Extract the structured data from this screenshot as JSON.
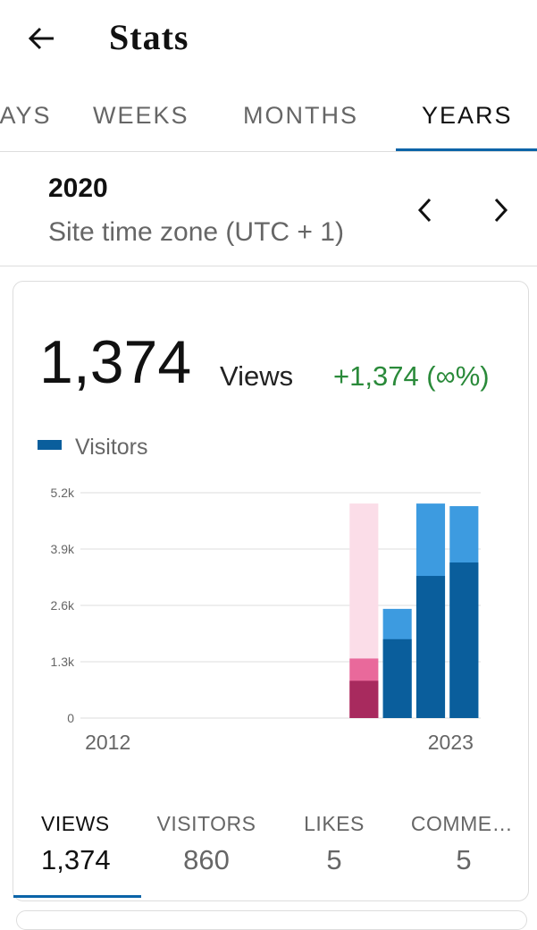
{
  "header": {
    "title": "Stats"
  },
  "tabs": [
    "DAYS",
    "WEEKS",
    "MONTHS",
    "YEARS"
  ],
  "period": {
    "title": "2020",
    "subtitle": "Site time zone (UTC + 1)"
  },
  "summary": {
    "value": "1,374",
    "unit": "Views",
    "change": "+1,374 (∞%)"
  },
  "chart_data": {
    "type": "bar",
    "categories": [
      "2012",
      null,
      null,
      null,
      null,
      null,
      null,
      null,
      null,
      null,
      null,
      "2023"
    ],
    "series": [
      {
        "color": "#3d9be0",
        "values": [
          0,
          0,
          0,
          0,
          0,
          0,
          0,
          0,
          1374,
          2520,
          4950,
          4890
        ]
      },
      {
        "name": "Visitors",
        "color": "#0a5e9c",
        "values": [
          0,
          0,
          0,
          0,
          0,
          0,
          0,
          0,
          860,
          1820,
          3280,
          3590
        ]
      }
    ],
    "highlight_index": 8,
    "highlight_colors": [
      "#e9699b",
      "#a82a5e"
    ],
    "highlight_background": "#fbdde8",
    "ylim": [
      0,
      5200
    ],
    "yticks": [
      0,
      {
        "value": 1300,
        "label": "1.3k"
      },
      {
        "value": 2600,
        "label": "2.6k"
      },
      {
        "value": 3900,
        "label": "3.9k"
      },
      {
        "value": 5200,
        "label": "5.2k"
      }
    ],
    "grid": true
  },
  "stats": [
    {
      "label": "VIEWS",
      "value": "1,374"
    },
    {
      "label": "VISITORS",
      "value": "860"
    },
    {
      "label": "LIKES",
      "value": "5"
    },
    {
      "label": "COMME…",
      "value": "5"
    }
  ]
}
